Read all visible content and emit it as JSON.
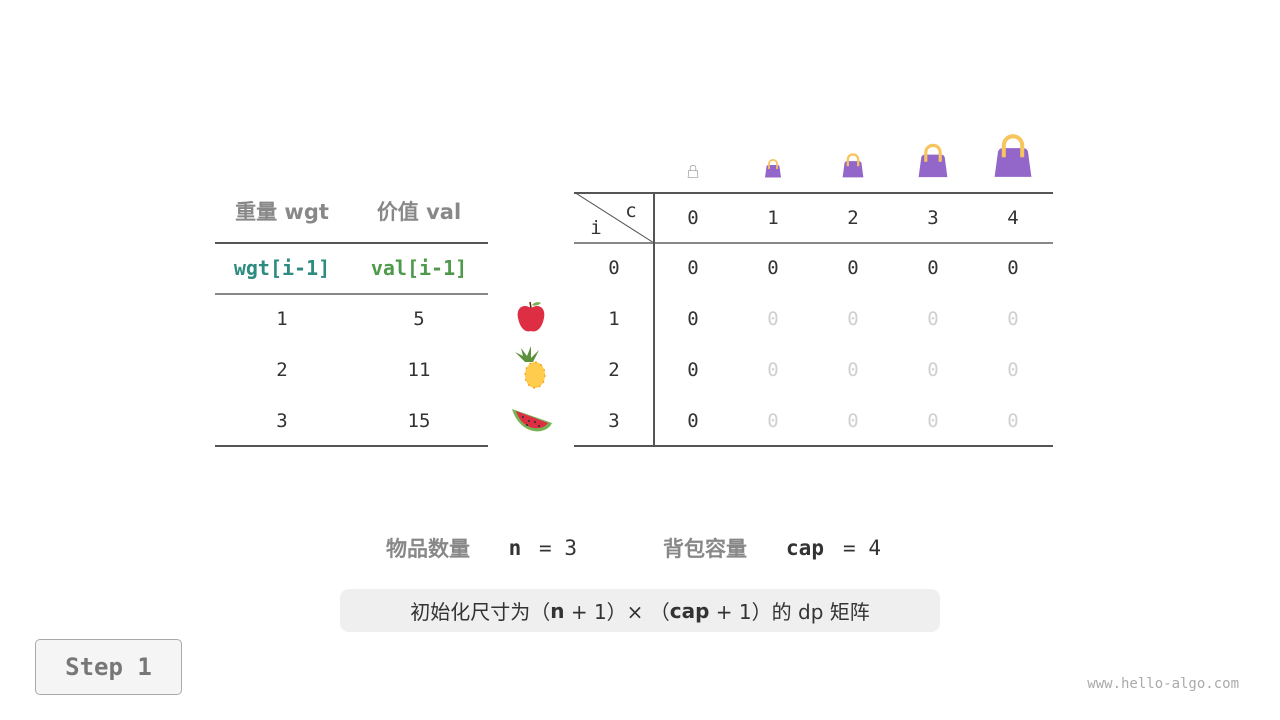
{
  "items_table": {
    "headers": [
      "重量 wgt",
      "价值 val"
    ],
    "subheaders": [
      "wgt[i-1]",
      "val[i-1]"
    ],
    "rows": [
      [
        "1",
        "5"
      ],
      [
        "2",
        "11"
      ],
      [
        "3",
        "15"
      ]
    ],
    "fruit_icons": [
      "apple-icon",
      "pineapple-icon",
      "watermelon-icon"
    ]
  },
  "dp_table": {
    "corner_col": "c",
    "corner_row": "i",
    "col_headers": [
      "0",
      "1",
      "2",
      "3",
      "4"
    ],
    "row_headers": [
      "0",
      "1",
      "2",
      "3"
    ],
    "cells": [
      [
        "0",
        "0",
        "0",
        "0",
        "0"
      ],
      [
        "0",
        "0",
        "0",
        "0",
        "0"
      ],
      [
        "0",
        "0",
        "0",
        "0",
        "0"
      ],
      [
        "0",
        "0",
        "0",
        "0",
        "0"
      ]
    ],
    "bag_icons": [
      "empty-bag-icon",
      "bag-icon",
      "bag-icon",
      "bag-icon",
      "bag-icon"
    ]
  },
  "summary": {
    "n_label": "物品数量",
    "n_var": "n",
    "n_eq": "= 3",
    "cap_label": "背包容量",
    "cap_var": "cap",
    "cap_eq": "= 4"
  },
  "note": {
    "pre": "初始化尺寸为（",
    "n": "n",
    "mid": " + 1）× （",
    "cap": "cap",
    "post": " + 1）的 dp 矩阵"
  },
  "step_label": "Step 1",
  "watermark": "www.hello-algo.com",
  "colors": {
    "wgt": "#2e8b80",
    "val": "#4e9a4a",
    "bag": "#9366c9",
    "handle": "#f8c45e"
  }
}
